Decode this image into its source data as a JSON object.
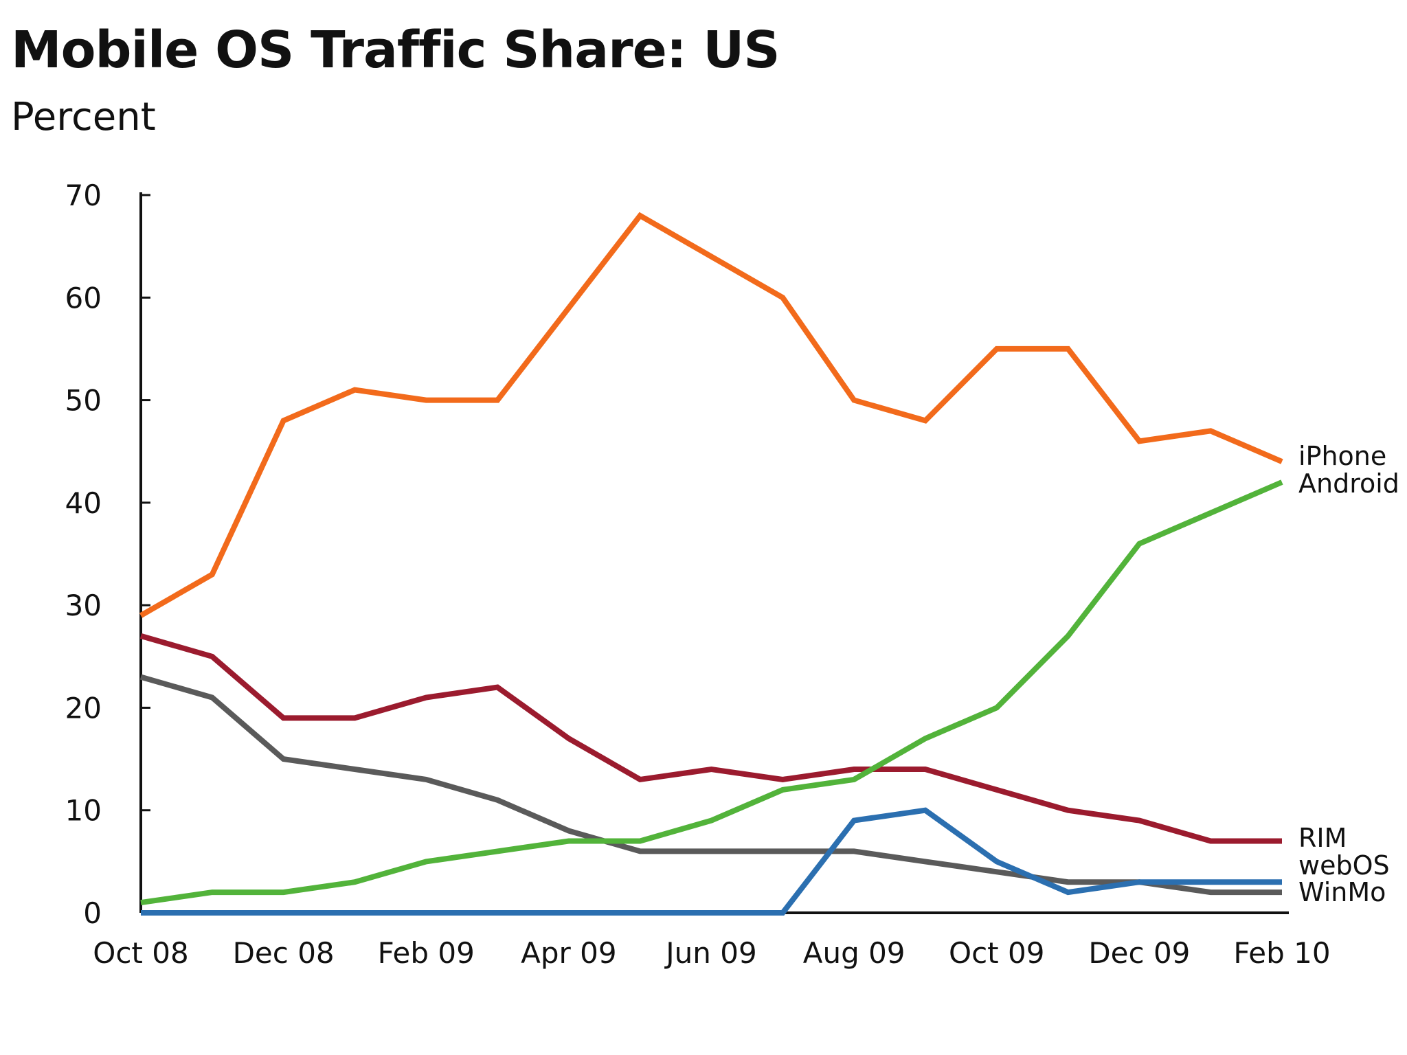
{
  "chart_data": {
    "type": "line",
    "title": "Mobile OS Traffic Share: US",
    "subtitle": "Percent",
    "ylim": [
      0,
      70
    ],
    "yticks": [
      0,
      10,
      20,
      30,
      40,
      50,
      60,
      70
    ],
    "xticklabels": [
      "Oct 08",
      "Dec 08",
      "Feb 09",
      "Apr 09",
      "Jun 09",
      "Aug 09",
      "Oct 09",
      "Dec 09",
      "Feb 10"
    ],
    "x": [
      "Oct 08",
      "Nov 08",
      "Dec 08",
      "Jan 09",
      "Feb 09",
      "Mar 09",
      "Apr 09",
      "May 09",
      "Jun 09",
      "Jul 09",
      "Aug 09",
      "Sep 09",
      "Oct 09",
      "Nov 09",
      "Dec 09",
      "Jan 10",
      "Feb 10"
    ],
    "grid": false,
    "legend": "right",
    "series": [
      {
        "name": "iPhone",
        "color": "#f26a1b",
        "values": [
          29,
          33,
          48,
          51,
          50,
          50,
          59,
          68,
          64,
          60,
          50,
          48,
          55,
          55,
          46,
          47,
          44
        ]
      },
      {
        "name": "Android",
        "color": "#52b33a",
        "values": [
          1,
          2,
          2,
          3,
          5,
          6,
          7,
          7,
          9,
          12,
          13,
          17,
          20,
          27,
          36,
          39,
          42
        ]
      },
      {
        "name": "RIM",
        "color": "#9b1b2e",
        "values": [
          27,
          25,
          19,
          19,
          21,
          22,
          17,
          13,
          14,
          13,
          14,
          14,
          12,
          10,
          9,
          7,
          7
        ]
      },
      {
        "name": "webOS",
        "color": "#2b6fb0",
        "values": [
          0,
          0,
          0,
          0,
          0,
          0,
          0,
          0,
          0,
          0,
          9,
          10,
          5,
          2,
          3,
          3,
          3
        ]
      },
      {
        "name": "WinMo",
        "color": "#5a5a5a",
        "values": [
          23,
          21,
          15,
          14,
          13,
          11,
          8,
          6,
          6,
          6,
          6,
          5,
          4,
          3,
          3,
          2,
          2
        ]
      }
    ]
  }
}
